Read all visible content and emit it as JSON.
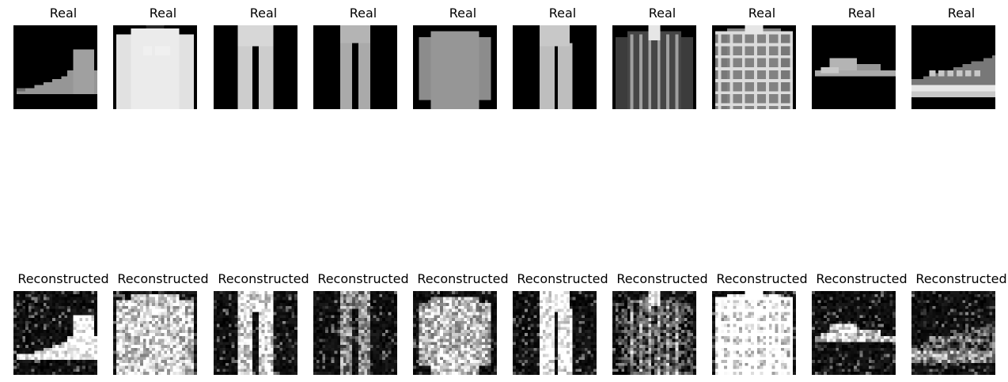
{
  "top_row": {
    "panels": [
      {
        "title": "Real",
        "subject": "sneaker"
      },
      {
        "title": "Real",
        "subject": "sweater"
      },
      {
        "title": "Real",
        "subject": "trousers"
      },
      {
        "title": "Real",
        "subject": "trousers"
      },
      {
        "title": "Real",
        "subject": "shirt"
      },
      {
        "title": "Real",
        "subject": "trousers"
      },
      {
        "title": "Real",
        "subject": "coat"
      },
      {
        "title": "Real",
        "subject": "shirt"
      },
      {
        "title": "Real",
        "subject": "sandal"
      },
      {
        "title": "Real",
        "subject": "sneaker"
      }
    ]
  },
  "bottom_row": {
    "panels": [
      {
        "title": "Reconstructed",
        "subject": "sneaker"
      },
      {
        "title": "Reconstructed",
        "subject": "sweater"
      },
      {
        "title": "Reconstructed",
        "subject": "trousers"
      },
      {
        "title": "Reconstructed",
        "subject": "trousers"
      },
      {
        "title": "Reconstructed",
        "subject": "shirt"
      },
      {
        "title": "Reconstructed",
        "subject": "trousers"
      },
      {
        "title": "Reconstructed",
        "subject": "coat"
      },
      {
        "title": "Reconstructed",
        "subject": "shirt"
      },
      {
        "title": "Reconstructed",
        "subject": "sandal"
      },
      {
        "title": "Reconstructed",
        "subject": "sneaker"
      }
    ]
  },
  "colors": {
    "background": "#ffffff",
    "image_bg": "#000000",
    "text": "#000000"
  }
}
